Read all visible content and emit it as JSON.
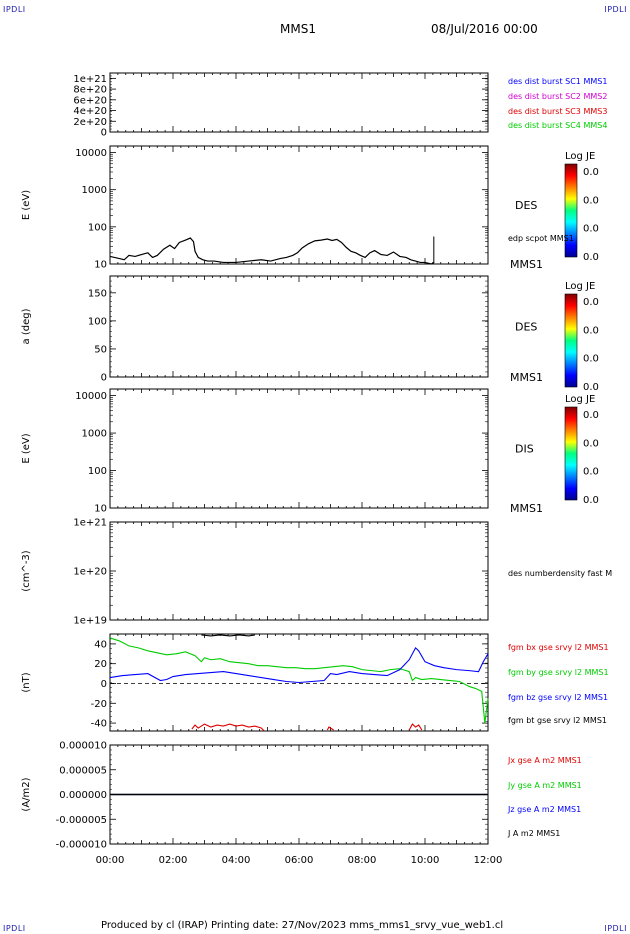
{
  "header": {
    "corner_left_top": "IPDLI",
    "corner_right_top": "IPDLI",
    "corner_left_bottom": "IPDLI",
    "corner_right_bottom": "IPDLI",
    "spacecraft": "MMS1",
    "date_time": "08/Jul/2016 00:00"
  },
  "footer": {
    "text": "Produced by cl (IRAP)   Printing date: 27/Nov/2023   mms_mms1_srvy_vue_web1.cl"
  },
  "colors": {
    "black": "#000000",
    "blue": "#0000ff",
    "magenta": "#d000d0",
    "red": "#e00000",
    "green": "#00cc00"
  },
  "chart_data": [
    {
      "type": "line",
      "panel": "des_dist_burst",
      "ylabel": "",
      "ylim": [
        0,
        1.1e+21
      ],
      "yticks": [
        "1e+21",
        "8e+20",
        "6e+20",
        "4e+20",
        "2e+20",
        "0"
      ],
      "ytick_values": [
        1e+21,
        8e+20,
        6e+20,
        4e+20,
        2e+20,
        0
      ],
      "reference_line": 0,
      "series": [
        {
          "name": "des dist burst SC1 MMS1",
          "color": "#0000ff",
          "values": []
        },
        {
          "name": "des dist burst SC2 MMS2",
          "color": "#d000d0",
          "values": []
        },
        {
          "name": "des dist burst SC3 MMS3",
          "color": "#e00000",
          "values": []
        },
        {
          "name": "des dist burst SC4 MMS4",
          "color": "#00cc00",
          "values": []
        }
      ]
    },
    {
      "type": "heatmap",
      "panel": "des_energy",
      "ylabel": "E (eV)",
      "yscale": "log",
      "ylim": [
        10,
        15000
      ],
      "yticks": [
        "10000",
        "1000",
        "100",
        "10"
      ],
      "ytick_values": [
        10000,
        1000,
        100,
        10
      ],
      "label": "DES",
      "sc_label": "MMS1",
      "colorbar": {
        "title": "Log JE",
        "ticks": [
          "0.0",
          "0.0",
          "0.0",
          "0.0"
        ]
      },
      "overlay": {
        "name": "edp scpot MMS1",
        "color": "#000000",
        "x_hours": [
          0.0,
          0.3,
          0.45,
          0.6,
          0.8,
          1.0,
          1.2,
          1.35,
          1.5,
          1.7,
          1.9,
          2.05,
          2.2,
          2.4,
          2.55,
          2.65,
          2.7,
          2.8,
          2.95,
          3.1,
          3.3,
          3.6,
          4.0,
          4.4,
          4.8,
          5.1,
          5.4,
          5.6,
          5.8,
          5.95,
          6.1,
          6.3,
          6.5,
          6.7,
          6.9,
          7.05,
          7.2,
          7.35,
          7.5,
          7.65,
          7.8,
          7.95,
          8.1,
          8.25,
          8.4,
          8.6,
          8.8,
          9.0,
          9.2,
          9.4,
          9.55,
          9.7,
          9.85,
          10.0,
          10.2,
          10.28
        ],
        "values": [
          16,
          14,
          13,
          17,
          16,
          18,
          20,
          15,
          17,
          25,
          32,
          26,
          38,
          44,
          50,
          40,
          22,
          15,
          13,
          12,
          12,
          11,
          11,
          12,
          13,
          12,
          14,
          15,
          17,
          20,
          27,
          35,
          42,
          44,
          47,
          43,
          46,
          38,
          28,
          22,
          20,
          17,
          15,
          20,
          23,
          18,
          17,
          21,
          16,
          15,
          13,
          12,
          11,
          11,
          10,
          11
        ],
        "spike_hour": 10.28,
        "spike_value": 55
      }
    },
    {
      "type": "heatmap",
      "panel": "des_pitch",
      "ylabel": "a (deg)",
      "ylim": [
        0,
        180
      ],
      "yticks": [
        "150",
        "100",
        "50",
        "0"
      ],
      "ytick_values": [
        150,
        100,
        50,
        0
      ],
      "label": "DES",
      "sc_label": "MMS1",
      "colorbar": {
        "title": "Log JE",
        "ticks": [
          "0.0",
          "0.0",
          "0.0",
          "0.0"
        ]
      }
    },
    {
      "type": "heatmap",
      "panel": "dis_energy",
      "ylabel": "E (eV)",
      "yscale": "log",
      "ylim": [
        10,
        15000
      ],
      "yticks": [
        "10000",
        "1000",
        "100",
        "10"
      ],
      "ytick_values": [
        10000,
        1000,
        100,
        10
      ],
      "label": "DIS",
      "sc_label": "MMS1",
      "colorbar": {
        "title": "Log JE",
        "ticks": [
          "0.0",
          "0.0",
          "0.0",
          "0.0"
        ]
      }
    },
    {
      "type": "line",
      "panel": "density",
      "ylabel": "(cm^-3)",
      "yscale": "log",
      "ylim": [
        1e+19,
        1e+21
      ],
      "yticks": [
        "1e+21",
        "1e+20",
        "1e+19"
      ],
      "ytick_values": [
        1e+21,
        1e+20,
        1e+19
      ],
      "series": [
        {
          "name": "des numberdensity fast M",
          "color": "#000000",
          "values": []
        }
      ]
    },
    {
      "type": "line",
      "panel": "fgm",
      "ylabel": "(nT)",
      "ylim": [
        -48,
        50
      ],
      "yticks": [
        "40",
        "20",
        "0",
        "-20",
        "-40"
      ],
      "ytick_values": [
        40,
        20,
        0,
        -20,
        -40
      ],
      "reference_line": 0,
      "series": [
        {
          "name": "fgm bx gse srvy l2 MMS1",
          "color": "#e00000",
          "x_hours": [
            2.6,
            2.7,
            2.8,
            3.0,
            3.2,
            3.4,
            3.6,
            3.8,
            4.0,
            4.2,
            4.4,
            4.6,
            4.8,
            4.9
          ],
          "values": [
            -46,
            -42,
            -45,
            -41,
            -44,
            -42,
            -43,
            -41,
            -43,
            -42,
            -44,
            -43,
            -45,
            -48
          ]
        },
        {
          "name": "fgm by gse srvy l2 MMS1",
          "color": "#00cc00",
          "x_hours": [
            0.0,
            0.3,
            0.6,
            0.9,
            1.2,
            1.5,
            1.8,
            2.1,
            2.4,
            2.7,
            2.9,
            3.0,
            3.2,
            3.5,
            3.8,
            4.1,
            4.4,
            4.7,
            5.0,
            5.3,
            5.6,
            5.9,
            6.2,
            6.5,
            6.8,
            7.1,
            7.4,
            7.7,
            8.0,
            8.3,
            8.6,
            8.9,
            9.2,
            9.5,
            9.6,
            9.7,
            9.9,
            10.2,
            10.5,
            10.8,
            11.1,
            11.4,
            11.6,
            11.8,
            11.9,
            12.0
          ],
          "values": [
            46,
            43,
            38,
            36,
            33,
            31,
            29,
            30,
            32,
            28,
            22,
            26,
            24,
            25,
            22,
            21,
            20,
            18,
            18,
            17,
            16,
            16,
            15,
            15,
            16,
            17,
            18,
            17,
            14,
            13,
            12,
            14,
            15,
            12,
            3,
            6,
            4,
            5,
            4,
            3,
            2,
            -3,
            -5,
            -8,
            -40,
            -15
          ]
        },
        {
          "name": "fgm bz gse srvy l2 MMS1",
          "color": "#0000ff",
          "x_hours": [
            0.0,
            0.4,
            0.8,
            1.2,
            1.6,
            1.8,
            2.0,
            2.4,
            2.8,
            3.2,
            3.6,
            4.0,
            4.4,
            4.8,
            5.2,
            5.6,
            6.0,
            6.4,
            6.8,
            7.0,
            7.2,
            7.6,
            8.0,
            8.4,
            8.8,
            9.2,
            9.5,
            9.7,
            9.8,
            10.0,
            10.3,
            10.6,
            11.0,
            11.4,
            11.7,
            11.85,
            12.0
          ],
          "values": [
            6,
            8,
            9,
            10,
            3,
            4,
            7,
            9,
            10,
            11,
            12,
            10,
            8,
            6,
            4,
            2,
            1,
            2,
            3,
            10,
            9,
            12,
            10,
            9,
            8,
            14,
            24,
            36,
            33,
            22,
            18,
            16,
            14,
            13,
            12,
            22,
            30
          ]
        },
        {
          "name": "fgm bt gse srvy l2 MMS1",
          "color": "#000000",
          "x_hours": [
            2.9,
            3.2,
            3.5,
            3.8,
            4.1,
            4.4,
            4.6
          ],
          "values": [
            49,
            48,
            49,
            48,
            49,
            48,
            49
          ]
        }
      ],
      "extra_red_segments": [
        {
          "x_hours": [
            6.9,
            6.95,
            7.05,
            7.1
          ],
          "values": [
            -47,
            -44,
            -46,
            -47
          ]
        },
        {
          "x_hours": [
            9.5,
            9.6,
            9.7,
            9.8,
            9.9
          ],
          "values": [
            -47,
            -41,
            -44,
            -42,
            -47
          ]
        }
      ]
    },
    {
      "type": "line",
      "panel": "current",
      "ylabel": "(A/m2)",
      "ylim": [
        -1e-05,
        1e-05
      ],
      "yticks": [
        "0.000010",
        "0.000005",
        "0.000000",
        "-0.000005",
        "-0.000010"
      ],
      "ytick_values": [
        1e-05,
        5e-06,
        0,
        -5e-06,
        -1e-05
      ],
      "series": [
        {
          "name": "Jx gse A m2 MMS1",
          "color": "#e00000",
          "values": [
            0,
            0
          ]
        },
        {
          "name": "Jy gse A m2 MMS1",
          "color": "#00cc00",
          "values": [
            0,
            0
          ]
        },
        {
          "name": "Jz gse A m2 MMS1",
          "color": "#0000ff",
          "values": [
            0,
            0
          ]
        },
        {
          "name": "J A m2 MMS1",
          "color": "#000000",
          "values": [
            0,
            0
          ]
        }
      ]
    }
  ],
  "x_axis": {
    "range_hours": [
      0,
      12
    ],
    "tick_labels": [
      "00:00",
      "02:00",
      "04:00",
      "06:00",
      "08:00",
      "10:00",
      "12:00"
    ],
    "tick_values": [
      0,
      2,
      4,
      6,
      8,
      10,
      12
    ]
  }
}
